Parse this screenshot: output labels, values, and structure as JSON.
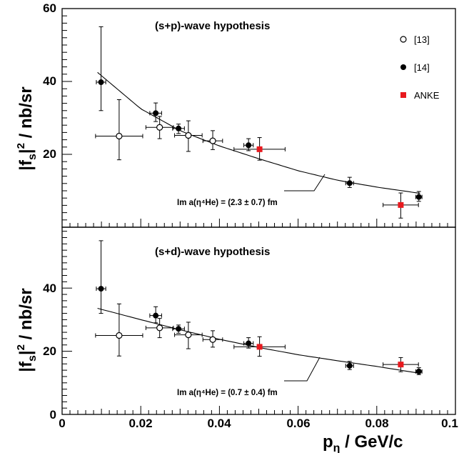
{
  "chart_data": [
    {
      "type": "scatter",
      "title": "(s+p)-wave hypothesis",
      "ylabel": "|f_s|^2 / nb/sr",
      "xlabel": "",
      "xlim": [
        0,
        0.1
      ],
      "ylim": [
        0,
        60
      ],
      "yticks": [
        "20",
        "40",
        "60"
      ],
      "legend": {
        "placement": "top-right",
        "entries": [
          "[13]",
          "[14]",
          "ANKE"
        ]
      },
      "annotation": "Im a(η⁴He) = (2.3 ± 0.7) fm",
      "fit_curve": {
        "x": [
          0.009,
          0.02,
          0.03,
          0.04,
          0.05,
          0.06,
          0.07,
          0.08,
          0.091
        ],
        "y": [
          42.5,
          32.5,
          26.5,
          22.3,
          18.8,
          15.5,
          12.9,
          11.0,
          9.3
        ]
      },
      "series": [
        {
          "name": "[13]",
          "marker": "open-circle",
          "points": [
            {
              "x": 0.0145,
              "y": 25,
              "xerr": 0.006,
              "yerr_lo": 6.5,
              "yerr_hi": 10
            },
            {
              "x": 0.0248,
              "y": 27.4,
              "xerr": 0.0035,
              "yerr_lo": 3.1,
              "yerr_hi": 3
            },
            {
              "x": 0.0321,
              "y": 25.2,
              "xerr": 0.0035,
              "yerr_lo": 4.4,
              "yerr_hi": 4
            },
            {
              "x": 0.0383,
              "y": 23.7,
              "xerr": 0.0025,
              "yerr_lo": 2.4,
              "yerr_hi": 2.8
            }
          ]
        },
        {
          "name": "[14]",
          "marker": "filled-circle",
          "points": [
            {
              "x": 0.0099,
              "y": 39.8,
              "xerr": 0.0012,
              "yerr_lo": 7.8,
              "yerr_hi": 15.2
            },
            {
              "x": 0.0238,
              "y": 31.3,
              "xerr": 0.0015,
              "yerr_lo": 2.3,
              "yerr_hi": 2.8
            },
            {
              "x": 0.0296,
              "y": 27.1,
              "xerr": 0.0015,
              "yerr_lo": 1.4,
              "yerr_hi": 1.2
            },
            {
              "x": 0.0474,
              "y": 22.5,
              "xerr": 0.0012,
              "yerr_lo": 1.5,
              "yerr_hi": 1.8
            },
            {
              "x": 0.0731,
              "y": 12.1,
              "xerr": 0.001,
              "yerr_lo": 1.2,
              "yerr_hi": 1.6
            },
            {
              "x": 0.0907,
              "y": 8.3,
              "xerr": 0.0008,
              "yerr_lo": 1.2,
              "yerr_hi": 1.5
            }
          ]
        },
        {
          "name": "ANKE",
          "marker": "filled-square",
          "points": [
            {
              "x": 0.0502,
              "y": 21.4,
              "xerr": 0.0065,
              "yerr_lo": 3.0,
              "yerr_hi": 3.2
            },
            {
              "x": 0.0861,
              "y": 6.1,
              "xerr": 0.0045,
              "yerr_lo": 3.6,
              "yerr_hi": 3.3
            }
          ]
        }
      ]
    },
    {
      "type": "scatter",
      "title": "(s+d)-wave hypothesis",
      "ylabel": "|f_s|^2 / nb/sr",
      "xlabel": "p_η / GeV/c",
      "xlim": [
        0,
        0.1
      ],
      "ylim": [
        0,
        60
      ],
      "yticks": [
        "0",
        "20",
        "40"
      ],
      "xticks": [
        "0",
        "0.02",
        "0.04",
        "0.06",
        "0.08",
        "0.1"
      ],
      "annotation": "Im a(η⁴He) = (0.7 ± 0.4) fm",
      "fit_curve": {
        "x": [
          0.009,
          0.02,
          0.03,
          0.04,
          0.05,
          0.06,
          0.07,
          0.08,
          0.091
        ],
        "y": [
          33.6,
          30.0,
          26.8,
          23.8,
          21.2,
          18.9,
          17.0,
          15.2,
          13.0
        ]
      },
      "series": [
        {
          "name": "[13]",
          "marker": "open-circle",
          "points": [
            {
              "x": 0.0145,
              "y": 25,
              "xerr": 0.006,
              "yerr_lo": 6.5,
              "yerr_hi": 10
            },
            {
              "x": 0.0248,
              "y": 27.4,
              "xerr": 0.0035,
              "yerr_lo": 3.1,
              "yerr_hi": 3
            },
            {
              "x": 0.0321,
              "y": 25.2,
              "xerr": 0.0035,
              "yerr_lo": 4.4,
              "yerr_hi": 4
            },
            {
              "x": 0.0383,
              "y": 23.7,
              "xerr": 0.0025,
              "yerr_lo": 2.4,
              "yerr_hi": 2.8
            }
          ]
        },
        {
          "name": "[14]",
          "marker": "filled-circle",
          "points": [
            {
              "x": 0.0099,
              "y": 39.8,
              "xerr": 0.0012,
              "yerr_lo": 7.8,
              "yerr_hi": 15.2
            },
            {
              "x": 0.0238,
              "y": 31.3,
              "xerr": 0.0015,
              "yerr_lo": 2.3,
              "yerr_hi": 2.8
            },
            {
              "x": 0.0296,
              "y": 27.1,
              "xerr": 0.0015,
              "yerr_lo": 1.4,
              "yerr_hi": 1.2
            },
            {
              "x": 0.0474,
              "y": 22.5,
              "xerr": 0.0012,
              "yerr_lo": 1.5,
              "yerr_hi": 1.8
            },
            {
              "x": 0.0731,
              "y": 15.4,
              "xerr": 0.001,
              "yerr_lo": 1.2,
              "yerr_hi": 1.4
            },
            {
              "x": 0.0907,
              "y": 13.6,
              "xerr": 0.0008,
              "yerr_lo": 1.0,
              "yerr_hi": 1.2
            }
          ]
        },
        {
          "name": "ANKE",
          "marker": "filled-square",
          "points": [
            {
              "x": 0.0502,
              "y": 21.4,
              "xerr": 0.0065,
              "yerr_lo": 3.0,
              "yerr_hi": 3.2
            },
            {
              "x": 0.0861,
              "y": 15.8,
              "xerr": 0.0045,
              "yerr_lo": 2.3,
              "yerr_hi": 2.2
            }
          ]
        }
      ]
    }
  ],
  "colors": {
    "axes": "#000000",
    "anke": "#e8191e",
    "markers": "#000000"
  }
}
